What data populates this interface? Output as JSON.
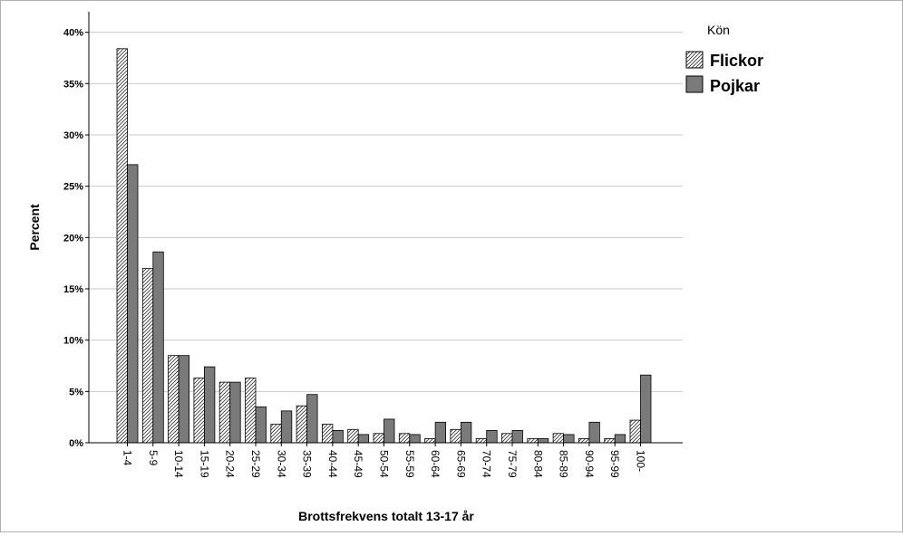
{
  "chart_data": {
    "type": "bar",
    "xlabel": "Brottsfrekvens totalt 13-17 år",
    "ylabel": "Percent",
    "ylim": [
      0,
      42
    ],
    "yticks": [
      0,
      5,
      10,
      15,
      20,
      25,
      30,
      35,
      40
    ],
    "ytick_suffix": "%",
    "grid": true,
    "legend_placement": "top-right",
    "legend_title": "Kön",
    "categories": [
      "1-4",
      "5-9",
      "10-14",
      "15-19",
      "20-24",
      "25-29",
      "30-34",
      "35-39",
      "40-44",
      "45-49",
      "50-54",
      "55-59",
      "60-64",
      "65-69",
      "70-74",
      "75-79",
      "80-84",
      "85-89",
      "90-94",
      "95-99",
      "100-"
    ],
    "series": [
      {
        "name": "Flickor",
        "fill": "hatched",
        "color": "#ffffff",
        "values": [
          38.4,
          17.0,
          8.5,
          6.3,
          5.9,
          6.3,
          1.8,
          3.6,
          1.8,
          1.3,
          0.9,
          0.9,
          0.4,
          1.3,
          0.4,
          0.9,
          0.4,
          0.9,
          0.4,
          0.4,
          2.2
        ]
      },
      {
        "name": "Pojkar",
        "fill": "solid",
        "color": "#7a7a7a",
        "values": [
          27.1,
          18.6,
          8.5,
          7.4,
          5.9,
          3.5,
          3.1,
          4.7,
          1.2,
          0.8,
          2.3,
          0.8,
          2.0,
          2.0,
          1.2,
          1.2,
          0.4,
          0.8,
          2.0,
          0.8,
          6.6
        ]
      }
    ]
  }
}
